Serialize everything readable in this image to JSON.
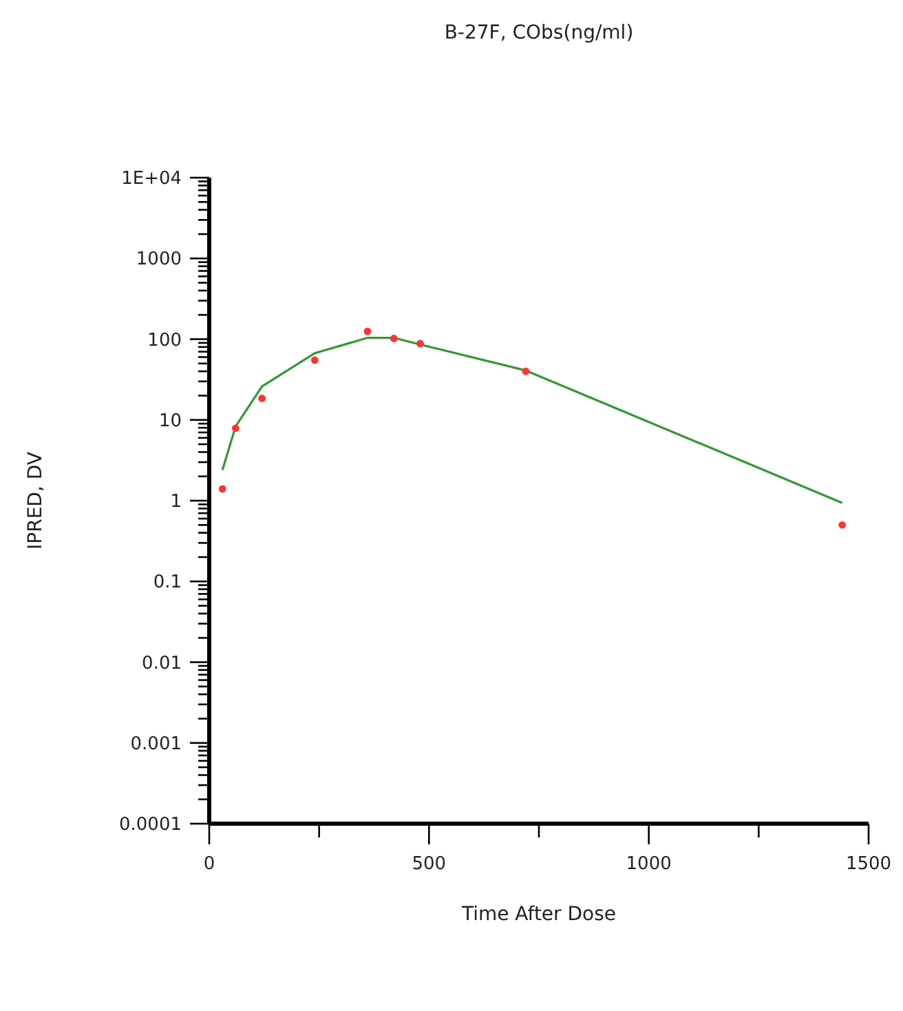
{
  "chart_data": {
    "type": "line",
    "title": "B-27F, CObs(ng/ml)",
    "xlabel": "Time After Dose",
    "ylabel": "IPRED, DV",
    "log": "y",
    "grid": false,
    "x": [
      30,
      60,
      120,
      240,
      360,
      420,
      480,
      720,
      1440
    ],
    "series": [
      {
        "color": "#339933",
        "marker": "none",
        "line_style": "solid",
        "values": [
          2.4,
          8.3,
          26,
          67,
          104,
          104,
          86,
          41,
          0.94
        ]
      },
      {
        "type": "scatter",
        "color": "#ff3333",
        "marker": "circle",
        "values": [
          1.4,
          7.9,
          18.5,
          55,
          125,
          102,
          88,
          40,
          0.5
        ]
      }
    ],
    "xlim": [
      0,
      1500
    ],
    "xticks": [
      0,
      {
        "value": 250,
        "label": null
      },
      500,
      {
        "value": 750,
        "label": null
      },
      1000,
      {
        "value": 1250,
        "label": null
      },
      1500
    ],
    "ylim": [
      0.0001,
      10000
    ],
    "yticks": [
      {
        "value": 0.0001,
        "label": "0.0001"
      },
      {
        "value": 0.0002,
        "label": null
      },
      {
        "value": 0.0003,
        "label": null
      },
      {
        "value": 0.0004,
        "label": null
      },
      {
        "value": 0.0005,
        "label": null
      },
      {
        "value": 0.0006,
        "label": null
      },
      {
        "value": 0.0007,
        "label": null
      },
      {
        "value": 0.0008,
        "label": null
      },
      {
        "value": 0.0009,
        "label": null
      },
      {
        "value": 0.001,
        "label": "0.001"
      },
      {
        "value": 0.002,
        "label": null
      },
      {
        "value": 0.003,
        "label": null
      },
      {
        "value": 0.004,
        "label": null
      },
      {
        "value": 0.005,
        "label": null
      },
      {
        "value": 0.006,
        "label": null
      },
      {
        "value": 0.007,
        "label": null
      },
      {
        "value": 0.008,
        "label": null
      },
      {
        "value": 0.009,
        "label": null
      },
      {
        "value": 0.01,
        "label": "0.01"
      },
      {
        "value": 0.02,
        "label": null
      },
      {
        "value": 0.03,
        "label": null
      },
      {
        "value": 0.04,
        "label": null
      },
      {
        "value": 0.05,
        "label": null
      },
      {
        "value": 0.06,
        "label": null
      },
      {
        "value": 0.07,
        "label": null
      },
      {
        "value": 0.08,
        "label": null
      },
      {
        "value": 0.09,
        "label": null
      },
      {
        "value": 0.1,
        "label": "0.1"
      },
      {
        "value": 0.2,
        "label": null
      },
      {
        "value": 0.3,
        "label": null
      },
      {
        "value": 0.4,
        "label": null
      },
      {
        "value": 0.5,
        "label": null
      },
      {
        "value": 0.6,
        "label": null
      },
      {
        "value": 0.7,
        "label": null
      },
      {
        "value": 0.8,
        "label": null
      },
      {
        "value": 0.9,
        "label": null
      },
      {
        "value": 1,
        "label": "1"
      },
      {
        "value": 2,
        "label": null
      },
      {
        "value": 3,
        "label": null
      },
      {
        "value": 4,
        "label": null
      },
      {
        "value": 5,
        "label": null
      },
      {
        "value": 6,
        "label": null
      },
      {
        "value": 7,
        "label": null
      },
      {
        "value": 8,
        "label": null
      },
      {
        "value": 9,
        "label": null
      },
      {
        "value": 10,
        "label": "10"
      },
      {
        "value": 20,
        "label": null
      },
      {
        "value": 30,
        "label": null
      },
      {
        "value": 40,
        "label": null
      },
      {
        "value": 50,
        "label": null
      },
      {
        "value": 60,
        "label": null
      },
      {
        "value": 70,
        "label": null
      },
      {
        "value": 80,
        "label": null
      },
      {
        "value": 90,
        "label": null
      },
      {
        "value": 100,
        "label": "100"
      },
      {
        "value": 200,
        "label": null
      },
      {
        "value": 300,
        "label": null
      },
      {
        "value": 400,
        "label": null
      },
      {
        "value": 500,
        "label": null
      },
      {
        "value": 600,
        "label": null
      },
      {
        "value": 700,
        "label": null
      },
      {
        "value": 800,
        "label": null
      },
      {
        "value": 900,
        "label": null
      },
      {
        "value": 1000,
        "label": "1000"
      },
      {
        "value": 2000,
        "label": null
      },
      {
        "value": 3000,
        "label": null
      },
      {
        "value": 4000,
        "label": null
      },
      {
        "value": 5000,
        "label": null
      },
      {
        "value": 6000,
        "label": null
      },
      {
        "value": 7000,
        "label": null
      },
      {
        "value": 8000,
        "label": null
      },
      {
        "value": 9000,
        "label": null
      },
      {
        "value": 10000,
        "label": "1E+04"
      }
    ]
  }
}
